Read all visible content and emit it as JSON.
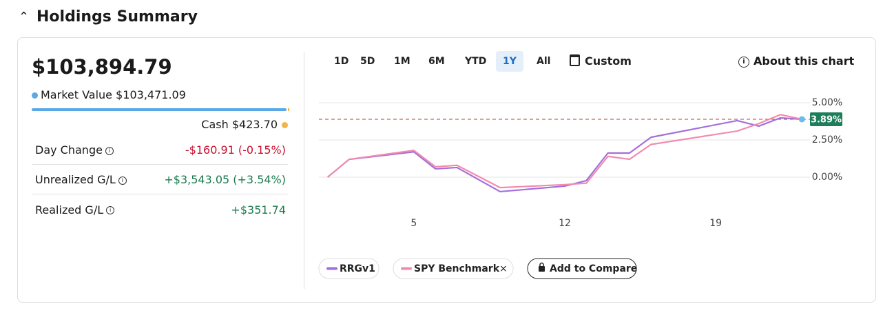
{
  "header": {
    "title": "Holdings Summary"
  },
  "summary": {
    "total": "$103,894.79",
    "market_value": {
      "label": "Market Value",
      "value": "$103,471.09"
    },
    "cash": {
      "label": "Cash",
      "value": "$423.70"
    },
    "rows": [
      {
        "label": "Day Change",
        "value": "-$160.91 (-0.15%)",
        "tone": "negative"
      },
      {
        "label": "Unrealized G/L",
        "value": "+$3,543.05 (+3.54%)",
        "tone": "positive"
      },
      {
        "label": "Realized G/L",
        "value": "+$351.74",
        "tone": "positive"
      }
    ]
  },
  "range_buttons": [
    "1D",
    "5D",
    "1M",
    "6M",
    "YTD",
    "1Y",
    "All",
    "Custom"
  ],
  "selected_range": 5,
  "about": "About this chart",
  "chart_data": {
    "type": "line",
    "x": [
      1,
      2,
      5,
      6,
      7,
      9,
      12,
      13,
      14,
      15,
      16,
      20,
      21,
      22,
      23
    ],
    "xlim": [
      0.5,
      23.5
    ],
    "xticks": [
      5,
      12,
      19
    ],
    "ylim": [
      -2,
      6.5
    ],
    "yticks": [
      {
        "value": 0,
        "label": "0.00%"
      },
      {
        "value": 2.5,
        "label": "2.50%"
      },
      {
        "value": 5,
        "label": "5.00%"
      }
    ],
    "grid": true,
    "series": [
      {
        "name": "RRGv1",
        "color": "#a46fdc",
        "values": [
          0,
          1.2,
          1.7,
          0.56,
          0.65,
          -0.97,
          -0.6,
          -0.23,
          1.62,
          1.62,
          2.68,
          3.8,
          3.43,
          3.98,
          3.89
        ]
      },
      {
        "name": "SPY Benchmark",
        "color": "#f28bb0",
        "values": [
          0,
          1.2,
          1.8,
          0.7,
          0.8,
          -0.7,
          -0.5,
          -0.4,
          1.4,
          1.2,
          2.2,
          3.1,
          3.6,
          4.2,
          3.89
        ]
      }
    ],
    "reference_line": {
      "value": 3.89,
      "label": "3.89%",
      "color": "#c0392b",
      "badge_color": "#1e7d5a"
    },
    "compare_button": "Add to Compare"
  }
}
